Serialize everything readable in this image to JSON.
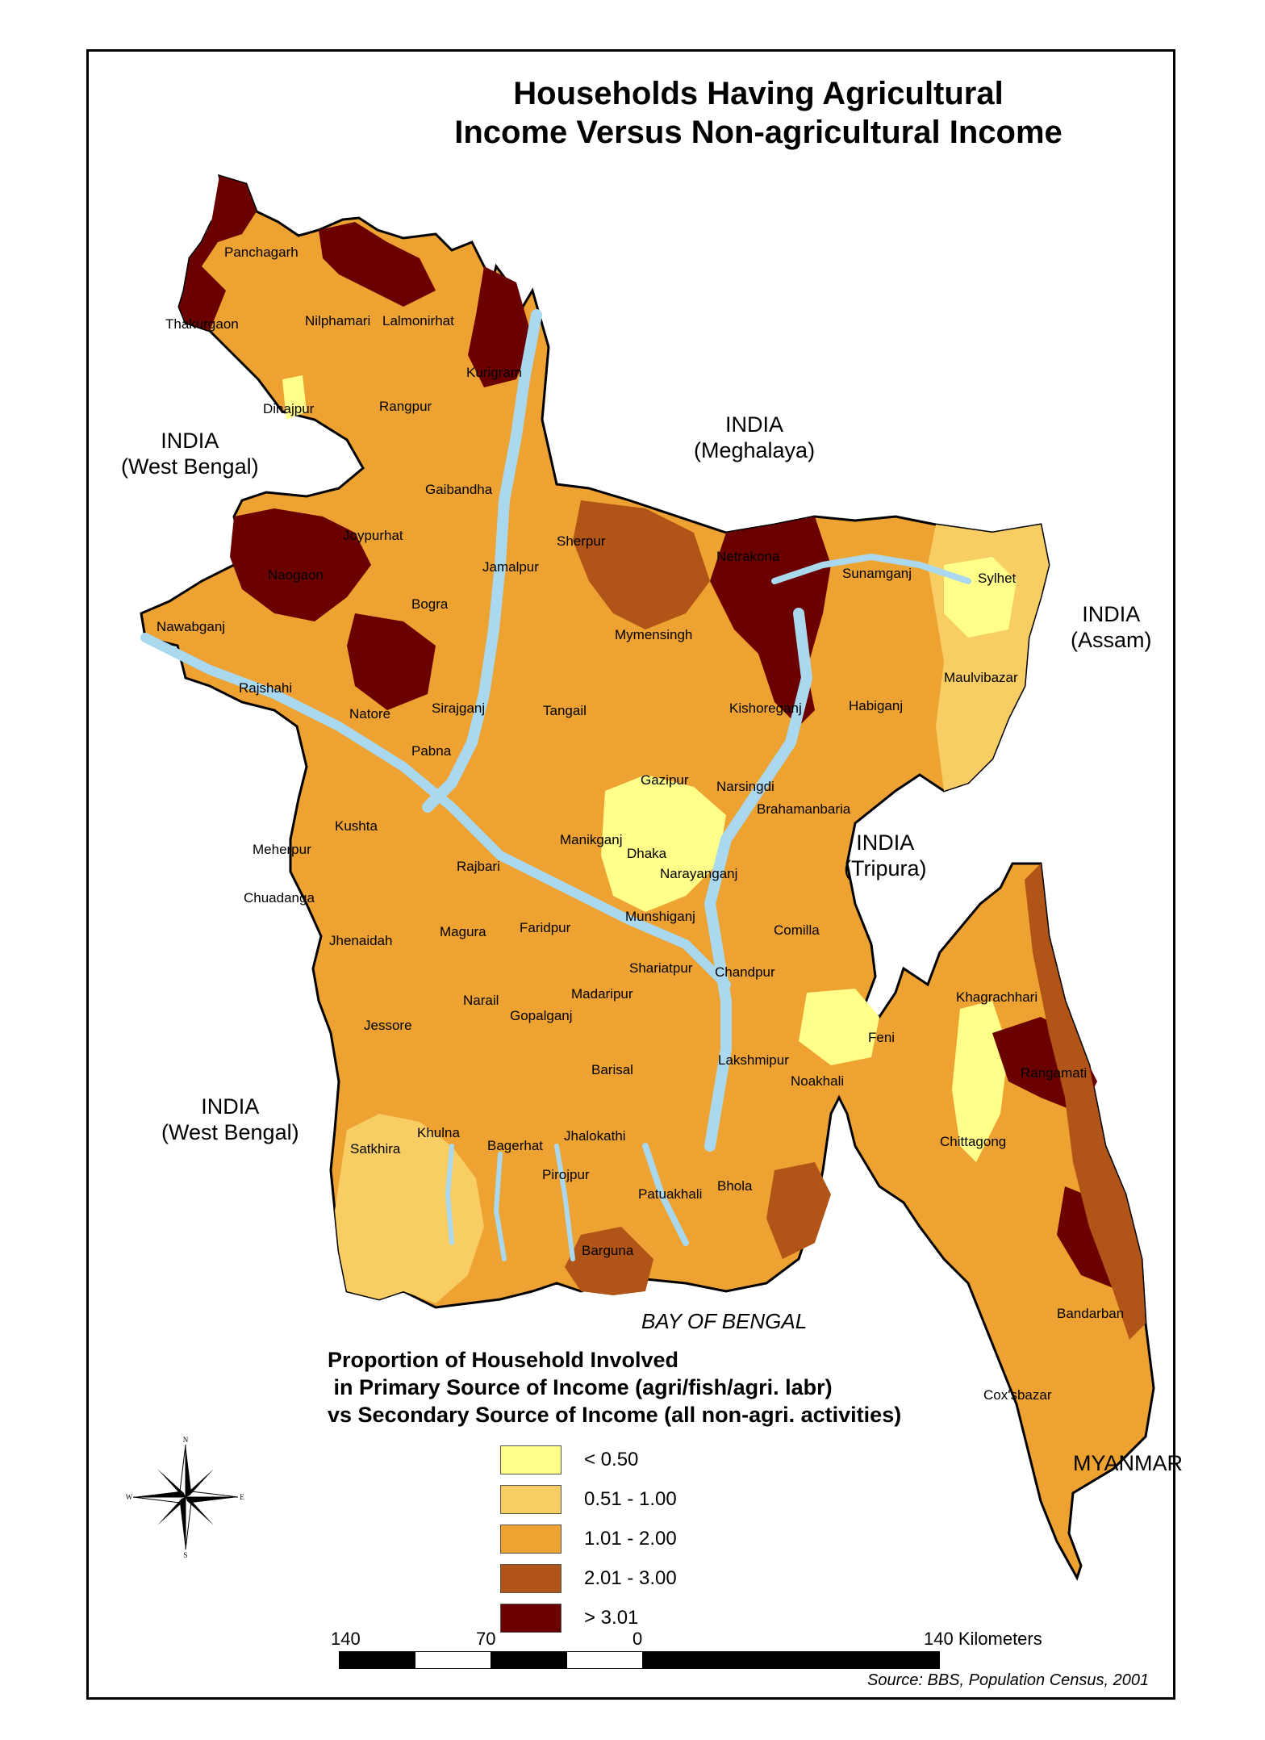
{
  "title_line1": "Households Having Agricultural",
  "title_line2": "Income Versus Non-agricultural Income",
  "colors": {
    "lt_050": "#ffff8a",
    "r_051_100": "#f8cd64",
    "r_101_200": "#eda232",
    "r_201_300": "#b05418",
    "gt_301": "#6b0000",
    "water": "#a9d8ef",
    "border": "#000000",
    "subdivision": "#8a8a8a"
  },
  "districts": [
    "Panchagarh",
    "Thakurgaon",
    "Nilphamari",
    "Lalmonirhat",
    "Kurigram",
    "Dinajpur",
    "Rangpur",
    "Gaibandha",
    "Joypurhat",
    "Naogaon",
    "Jamalpur",
    "Sherpur",
    "Netrakona",
    "Sunamganj",
    "Sylhet",
    "Bogra",
    "Nawabganj",
    "Mymensingh",
    "Maulvibazar",
    "Rajshahi",
    "Natore",
    "Sirajganj",
    "Tangail",
    "Kishoreganj",
    "Habiganj",
    "Pabna",
    "Gazipur",
    "Narsingdi",
    "Brahamanbaria",
    "Kushta",
    "Manikganj",
    "Dhaka",
    "Narayanganj",
    "Meherpur",
    "Rajbari",
    "Chuadanga",
    "Munshiganj",
    "Comilla",
    "Jhenaidah",
    "Magura",
    "Faridpur",
    "Shariatpur",
    "Chandpur",
    "Khagrachhari",
    "Narail",
    "Madaripur",
    "Jessore",
    "Gopalganj",
    "Feni",
    "Lakshmipur",
    "Barisal",
    "Rangamati",
    "Noakhali",
    "Satkhira",
    "Khulna",
    "Bagerhat",
    "Jhalokathi",
    "Chittagong",
    "Pirojpur",
    "Bhola",
    "Patuakhali",
    "Barguna",
    "Bandarban",
    "Cox'sbazar"
  ],
  "neighbors": {
    "india_wb_north_1": "INDIA",
    "india_wb_north_2": "(West Bengal)",
    "india_meg_1": "INDIA",
    "india_meg_2": "(Meghalaya)",
    "india_assam_1": "INDIA",
    "india_assam_2": "(Assam)",
    "india_tripura_1": "INDIA",
    "india_tripura_2": "(Tripura)",
    "india_wb_south_1": "INDIA",
    "india_wb_south_2": "(West Bengal)",
    "myanmar": "MYANMAR",
    "bay": "BAY OF BENGAL"
  },
  "legend": {
    "title": "Proportion of Household Involved\n in Primary Source of Income (agri/fish/agri. labr)\nvs Secondary Source of Income (all non-agri. activities)",
    "classes": [
      {
        "label": "<  0.50",
        "color": "#ffff8a"
      },
      {
        "label": "0.51 - 1.00",
        "color": "#f8cd64"
      },
      {
        "label": "1.01 - 2.00",
        "color": "#eda232"
      },
      {
        "label": "2.01 - 3.00",
        "color": "#b05418"
      },
      {
        "label": "> 3.01",
        "color": "#6b0000"
      }
    ]
  },
  "compass": {
    "n": "N",
    "s": "S",
    "e": "E",
    "w": "W"
  },
  "scale": {
    "t140_left": "140",
    "t70": "70",
    "t0": "0",
    "t140_right": "140 Kilometers"
  },
  "source": "Source: BBS, Population Census, 2001"
}
